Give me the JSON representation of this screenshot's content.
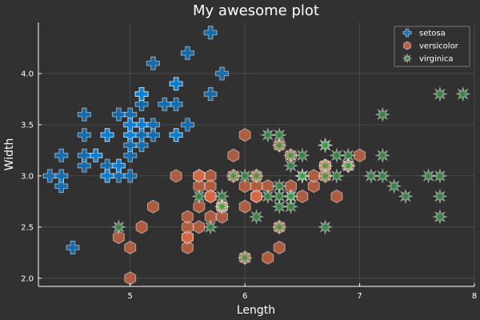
{
  "chart_data": {
    "type": "scatter",
    "title": "My awesome plot",
    "xlabel": "Length",
    "ylabel": "Width",
    "xlim": [
      4.2,
      8.0
    ],
    "ylim": [
      1.92,
      4.5
    ],
    "xticks": [
      5,
      6,
      7,
      8
    ],
    "yticks": [
      2.0,
      2.5,
      3.0,
      3.5,
      4.0
    ],
    "grid": true,
    "legend_position": "top-right",
    "background": "#313131",
    "series": [
      {
        "name": "setosa",
        "marker": "cross",
        "color": "#0C86E0",
        "points": [
          [
            5.1,
            3.5
          ],
          [
            4.9,
            3.0
          ],
          [
            4.7,
            3.2
          ],
          [
            4.6,
            3.1
          ],
          [
            5.0,
            3.6
          ],
          [
            5.4,
            3.9
          ],
          [
            4.6,
            3.4
          ],
          [
            5.0,
            3.4
          ],
          [
            4.4,
            2.9
          ],
          [
            4.9,
            3.1
          ],
          [
            5.4,
            3.7
          ],
          [
            4.8,
            3.4
          ],
          [
            4.8,
            3.0
          ],
          [
            4.3,
            3.0
          ],
          [
            5.8,
            4.0
          ],
          [
            5.7,
            4.4
          ],
          [
            5.4,
            3.9
          ],
          [
            5.1,
            3.5
          ],
          [
            5.7,
            3.8
          ],
          [
            5.1,
            3.8
          ],
          [
            5.4,
            3.4
          ],
          [
            5.1,
            3.7
          ],
          [
            4.6,
            3.6
          ],
          [
            5.1,
            3.3
          ],
          [
            4.8,
            3.4
          ],
          [
            5.0,
            3.0
          ],
          [
            5.0,
            3.4
          ],
          [
            5.2,
            3.5
          ],
          [
            5.2,
            3.4
          ],
          [
            4.7,
            3.2
          ],
          [
            4.8,
            3.1
          ],
          [
            5.4,
            3.4
          ],
          [
            5.2,
            4.1
          ],
          [
            5.5,
            4.2
          ],
          [
            4.9,
            3.1
          ],
          [
            5.0,
            3.2
          ],
          [
            5.5,
            3.5
          ],
          [
            4.9,
            3.6
          ],
          [
            4.4,
            3.0
          ],
          [
            5.1,
            3.4
          ],
          [
            5.0,
            3.5
          ],
          [
            4.5,
            2.3
          ],
          [
            4.4,
            3.2
          ],
          [
            5.0,
            3.5
          ],
          [
            5.1,
            3.8
          ],
          [
            4.8,
            3.0
          ],
          [
            5.1,
            3.8
          ],
          [
            4.6,
            3.2
          ],
          [
            5.3,
            3.7
          ],
          [
            5.0,
            3.3
          ]
        ]
      },
      {
        "name": "versicolor",
        "marker": "hexagon",
        "color": "#E26F46",
        "points": [
          [
            7.0,
            3.2
          ],
          [
            6.4,
            3.2
          ],
          [
            6.9,
            3.1
          ],
          [
            5.5,
            2.3
          ],
          [
            6.5,
            2.8
          ],
          [
            5.7,
            2.8
          ],
          [
            6.3,
            3.3
          ],
          [
            4.9,
            2.4
          ],
          [
            6.6,
            2.9
          ],
          [
            5.2,
            2.7
          ],
          [
            5.0,
            2.0
          ],
          [
            5.9,
            3.0
          ],
          [
            6.0,
            2.2
          ],
          [
            6.1,
            2.9
          ],
          [
            5.6,
            2.9
          ],
          [
            6.7,
            3.1
          ],
          [
            5.6,
            3.0
          ],
          [
            5.8,
            2.7
          ],
          [
            6.2,
            2.2
          ],
          [
            5.6,
            2.5
          ],
          [
            5.9,
            3.2
          ],
          [
            6.1,
            2.8
          ],
          [
            6.3,
            2.5
          ],
          [
            6.1,
            2.8
          ],
          [
            6.4,
            2.9
          ],
          [
            6.6,
            3.0
          ],
          [
            6.8,
            2.8
          ],
          [
            6.7,
            3.0
          ],
          [
            6.0,
            2.9
          ],
          [
            5.7,
            2.6
          ],
          [
            5.5,
            2.4
          ],
          [
            5.5,
            2.4
          ],
          [
            5.8,
            2.7
          ],
          [
            6.0,
            2.7
          ],
          [
            5.4,
            3.0
          ],
          [
            6.0,
            3.4
          ],
          [
            6.7,
            3.1
          ],
          [
            6.3,
            2.3
          ],
          [
            5.6,
            3.0
          ],
          [
            5.5,
            2.5
          ],
          [
            5.5,
            2.6
          ],
          [
            6.1,
            3.0
          ],
          [
            5.8,
            2.6
          ],
          [
            5.0,
            2.3
          ],
          [
            5.6,
            2.7
          ],
          [
            5.7,
            3.0
          ],
          [
            5.7,
            2.9
          ],
          [
            6.2,
            2.9
          ],
          [
            5.1,
            2.5
          ],
          [
            5.7,
            2.8
          ]
        ]
      },
      {
        "name": "virginica",
        "marker": "star",
        "color": "#3DA44D",
        "points": [
          [
            6.3,
            3.3
          ],
          [
            5.8,
            2.7
          ],
          [
            7.1,
            3.0
          ],
          [
            6.3,
            2.9
          ],
          [
            6.5,
            3.0
          ],
          [
            7.6,
            3.0
          ],
          [
            4.9,
            2.5
          ],
          [
            7.3,
            2.9
          ],
          [
            6.7,
            2.5
          ],
          [
            7.2,
            3.6
          ],
          [
            6.5,
            3.2
          ],
          [
            6.4,
            2.7
          ],
          [
            6.8,
            3.0
          ],
          [
            5.7,
            2.5
          ],
          [
            5.8,
            2.8
          ],
          [
            6.4,
            3.2
          ],
          [
            6.5,
            3.0
          ],
          [
            7.7,
            3.8
          ],
          [
            7.7,
            2.6
          ],
          [
            6.0,
            2.2
          ],
          [
            6.9,
            3.2
          ],
          [
            5.6,
            2.8
          ],
          [
            7.7,
            2.8
          ],
          [
            6.3,
            2.7
          ],
          [
            6.7,
            3.3
          ],
          [
            7.2,
            3.2
          ],
          [
            6.2,
            2.8
          ],
          [
            6.1,
            3.0
          ],
          [
            6.4,
            2.8
          ],
          [
            7.2,
            3.0
          ],
          [
            7.4,
            2.8
          ],
          [
            7.9,
            3.8
          ],
          [
            6.4,
            2.8
          ],
          [
            6.3,
            2.8
          ],
          [
            6.1,
            2.6
          ],
          [
            7.7,
            3.0
          ],
          [
            6.3,
            3.4
          ],
          [
            6.4,
            3.1
          ],
          [
            6.0,
            3.0
          ],
          [
            6.9,
            3.1
          ],
          [
            6.7,
            3.1
          ],
          [
            6.9,
            3.1
          ],
          [
            5.8,
            2.7
          ],
          [
            6.8,
            3.2
          ],
          [
            6.7,
            3.3
          ],
          [
            6.7,
            3.0
          ],
          [
            6.3,
            2.5
          ],
          [
            6.5,
            3.0
          ],
          [
            6.2,
            3.4
          ],
          [
            5.9,
            3.0
          ]
        ]
      }
    ]
  }
}
